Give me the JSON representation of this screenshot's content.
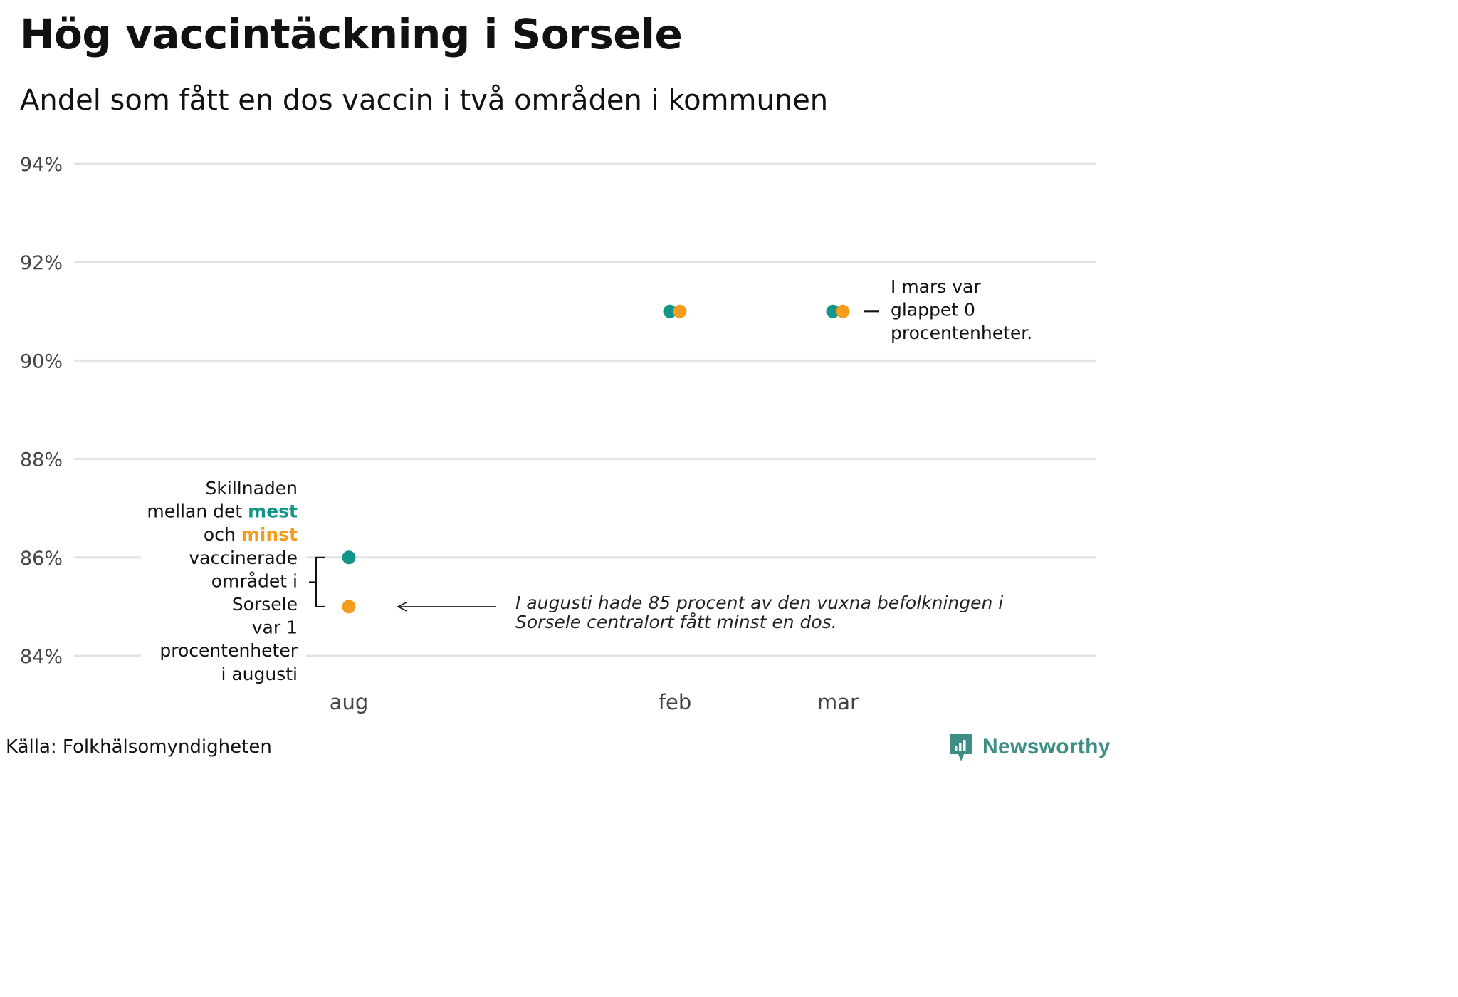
{
  "header": {
    "title": "Hög vaccintäckning i Sorsele",
    "subtitle": "Andel som fått en dos vaccin i två områden i kommunen"
  },
  "chart_data": {
    "type": "scatter",
    "title": "Hög vaccintäckning i Sorsele",
    "subtitle": "Andel som fått en dos vaccin i två områden i kommunen",
    "xlabel": "",
    "ylabel": "",
    "categories": [
      "aug",
      "feb",
      "mar"
    ],
    "y_ticks": [
      "84%",
      "86%",
      "88%",
      "90%",
      "92%",
      "94%"
    ],
    "y_tick_values": [
      84,
      86,
      88,
      90,
      92,
      94
    ],
    "ylim": [
      84,
      94
    ],
    "grid": true,
    "series": [
      {
        "name": "mest",
        "color": "#13968a",
        "values": [
          86,
          91,
          91
        ]
      },
      {
        "name": "minst",
        "color": "#f39c1d",
        "values": [
          85,
          91,
          91
        ]
      }
    ],
    "annotations": {
      "aug_lines": [
        [
          {
            "t": "Skillnaden"
          }
        ],
        [
          {
            "t": "mellan det "
          },
          {
            "t": "mest",
            "c": "mest"
          }
        ],
        [
          {
            "t": "och "
          },
          {
            "t": "minst",
            "c": "minst"
          }
        ],
        [
          {
            "t": "vaccinerade"
          }
        ],
        [
          {
            "t": "området i"
          }
        ],
        [
          {
            "t": "Sorsele"
          }
        ],
        [
          {
            "t": "var 1 "
          }
        ],
        [
          {
            "t": "procentenheter"
          }
        ],
        [
          {
            "t": "i augusti"
          }
        ]
      ],
      "mar_lines": [
        "I mars var",
        "glappet 0",
        "procentenheter."
      ],
      "italic_lines": [
        "I augusti hade 85 procent av den vuxna befolkningen i",
        "Sorsele centralort fått minst en dos."
      ]
    }
  },
  "footer": {
    "source": "Källa: Folkhälsomyndigheten",
    "brand": "Newsworthy",
    "brand_color": "#3e8e85"
  }
}
